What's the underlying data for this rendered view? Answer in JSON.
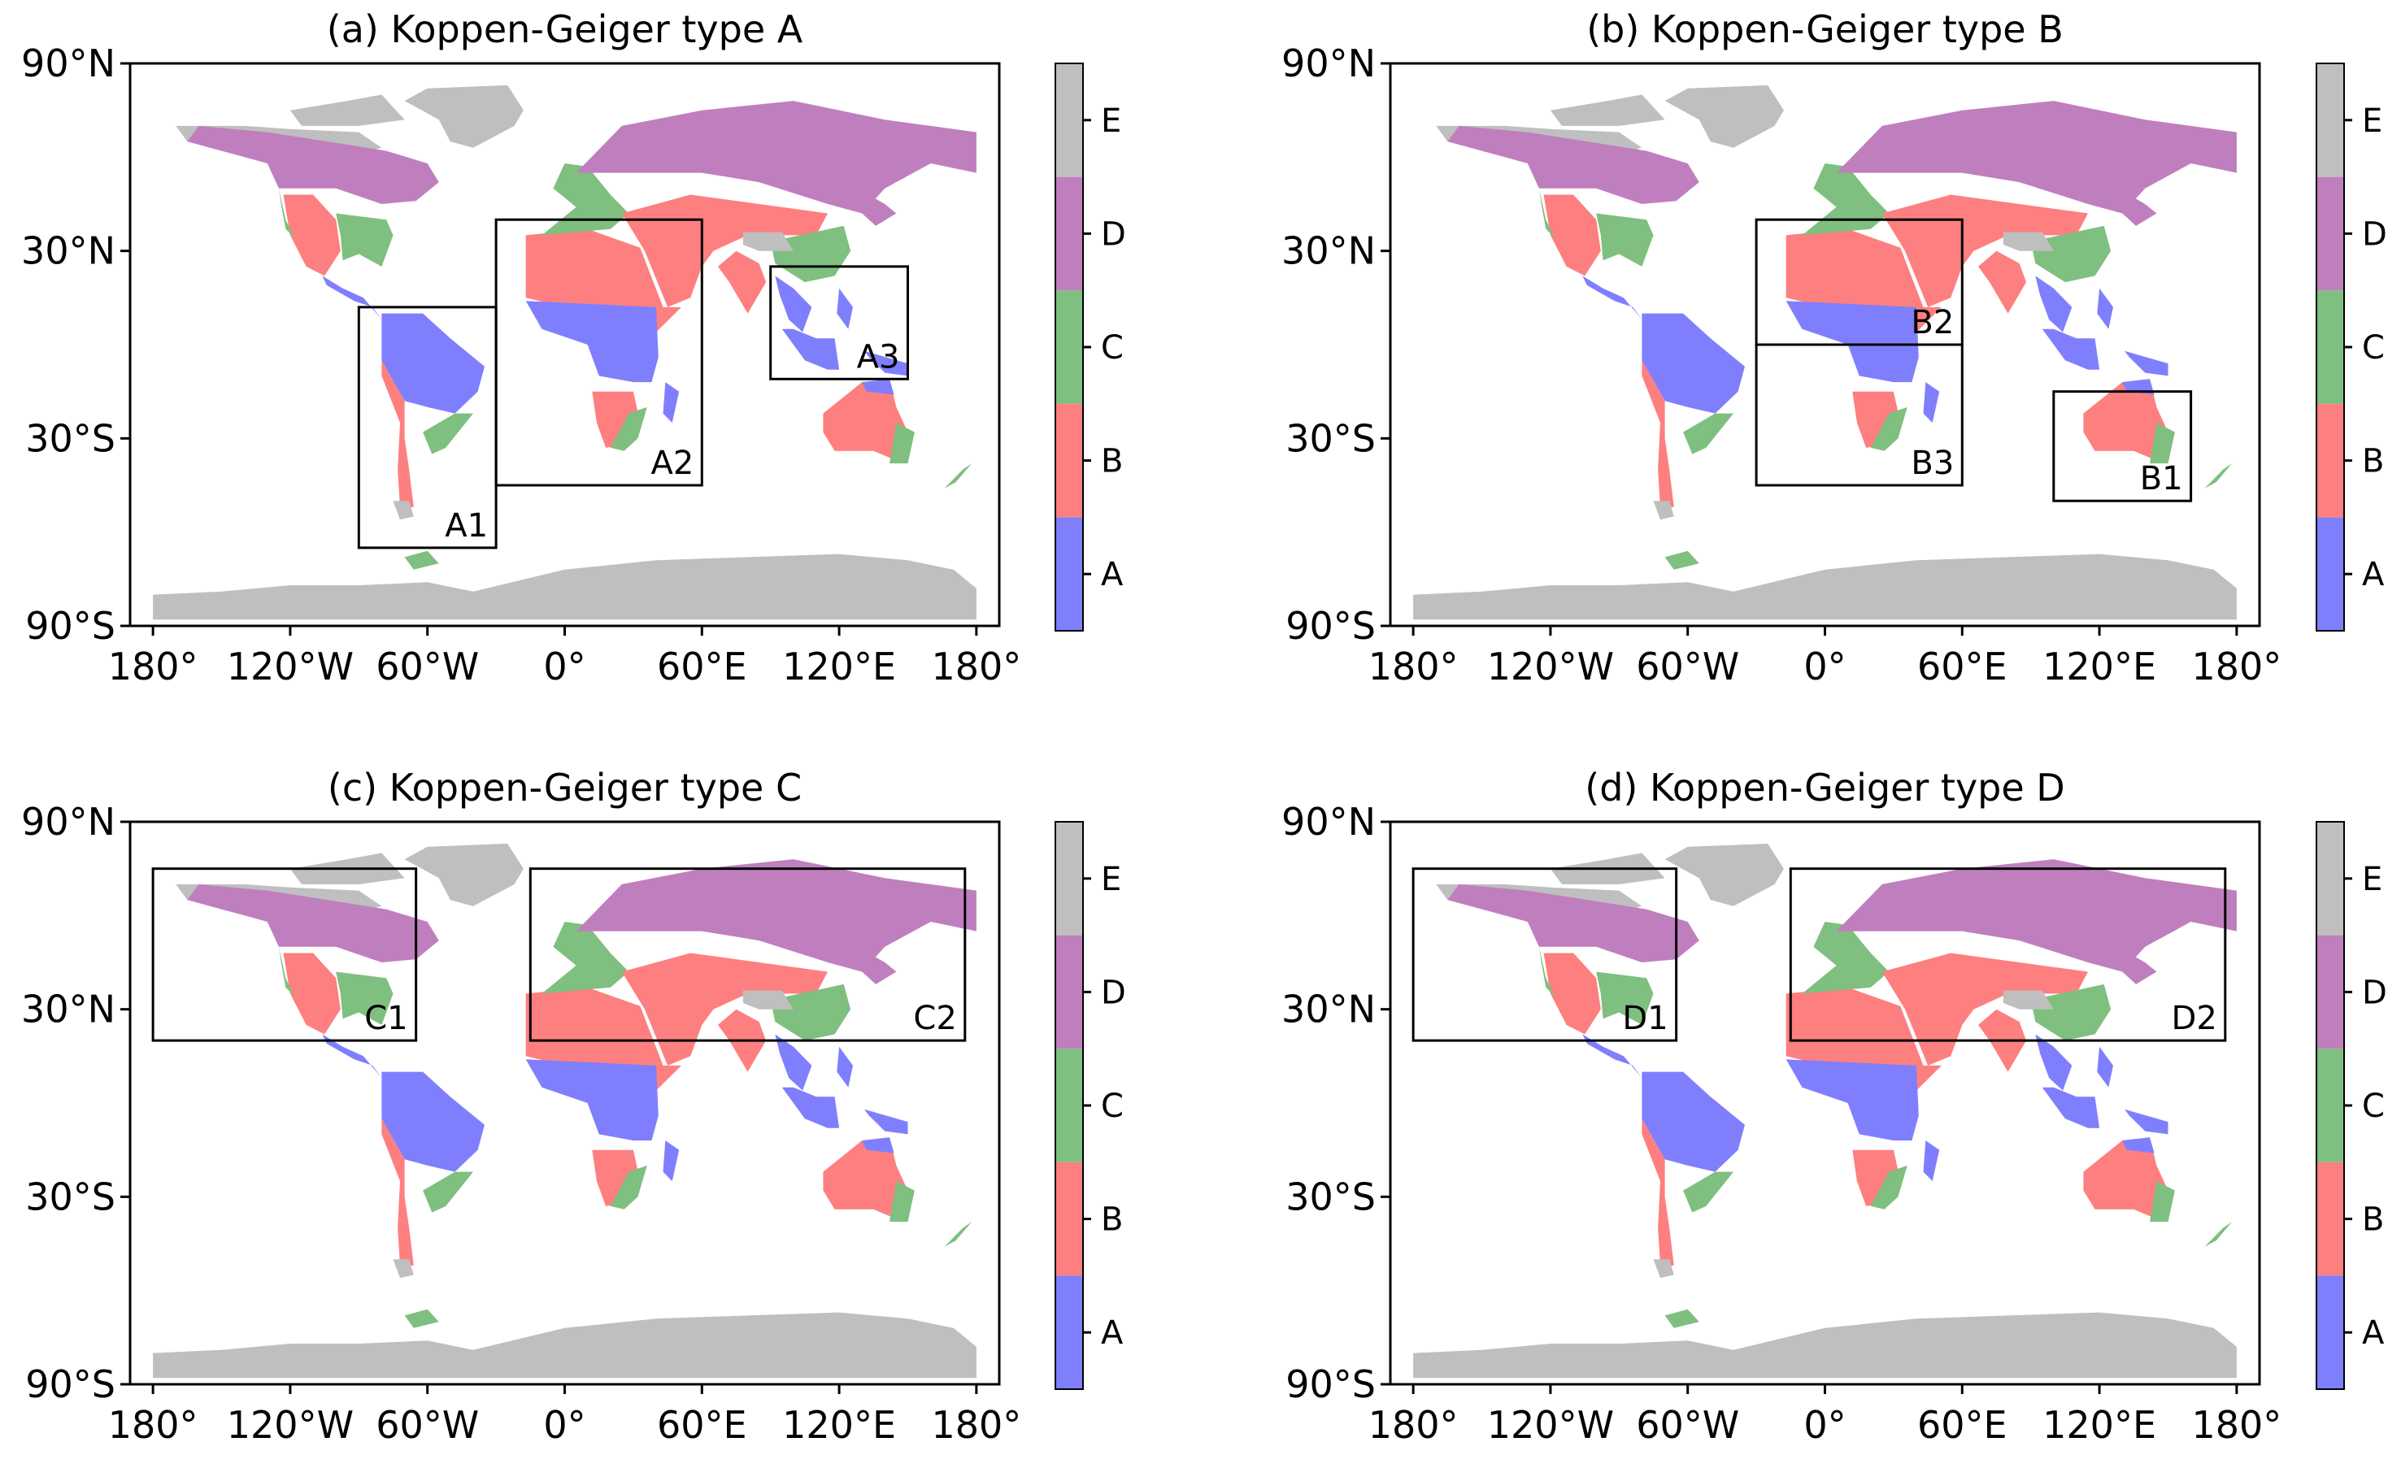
{
  "figure": {
    "longitude_ticks": [
      "180°",
      "120°W",
      "60°W",
      "0°",
      "60°E",
      "120°E",
      "180°"
    ],
    "longitude_values": [
      -180,
      -120,
      -60,
      0,
      60,
      120,
      180
    ],
    "latitude_ticks": [
      "90°N",
      "30°N",
      "30°S",
      "90°S"
    ],
    "latitude_values": [
      90,
      30,
      -30,
      -90
    ],
    "colorbar_labels": [
      "A",
      "B",
      "C",
      "D",
      "E"
    ],
    "class_colors": {
      "A": "#7f7ffe",
      "B": "#fe7f7f",
      "C": "#7fbf7f",
      "D": "#bf7fbf",
      "E": "#bfbfbf"
    }
  },
  "panels": [
    {
      "title": "(a) Koppen-Geiger type A",
      "regions": [
        {
          "label": "A1",
          "lon": [
            -90,
            -30
          ],
          "lat": [
            -65,
            12
          ]
        },
        {
          "label": "A2",
          "lon": [
            -30,
            60
          ],
          "lat": [
            -45,
            40
          ]
        },
        {
          "label": "A3",
          "lon": [
            90,
            150
          ],
          "lat": [
            -11,
            25
          ]
        }
      ]
    },
    {
      "title": "(b) Koppen-Geiger type B",
      "regions": [
        {
          "label": "B1",
          "lon": [
            100,
            160
          ],
          "lat": [
            -50,
            -15
          ]
        },
        {
          "label": "B2",
          "lon": [
            -30,
            60
          ],
          "lat": [
            0,
            40
          ]
        },
        {
          "label": "B3",
          "lon": [
            -30,
            60
          ],
          "lat": [
            -45,
            0
          ]
        }
      ]
    },
    {
      "title": "(c) Koppen-Geiger type C",
      "regions": [
        {
          "label": "C1",
          "lon": [
            -180,
            -65
          ],
          "lat": [
            20,
            75
          ]
        },
        {
          "label": "C2",
          "lon": [
            -15,
            175
          ],
          "lat": [
            20,
            75
          ]
        }
      ]
    },
    {
      "title": "(d) Koppen-Geiger type D",
      "regions": [
        {
          "label": "D1",
          "lon": [
            -180,
            -65
          ],
          "lat": [
            20,
            75
          ]
        },
        {
          "label": "D2",
          "lon": [
            -15,
            175
          ],
          "lat": [
            20,
            75
          ]
        }
      ]
    }
  ]
}
